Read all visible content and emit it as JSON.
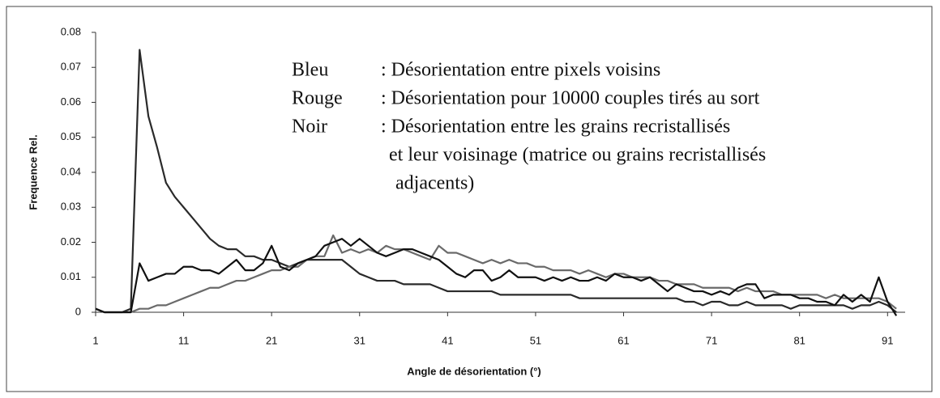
{
  "chart_data": {
    "type": "line",
    "x_label": "Angle de désorientation (°)",
    "y_label": "Frequence Rel.",
    "x": [
      1,
      2,
      3,
      4,
      5,
      6,
      7,
      8,
      9,
      10,
      11,
      12,
      13,
      14,
      15,
      16,
      17,
      18,
      19,
      20,
      21,
      22,
      23,
      24,
      25,
      26,
      27,
      28,
      29,
      30,
      31,
      32,
      33,
      34,
      35,
      36,
      37,
      38,
      39,
      40,
      41,
      42,
      43,
      44,
      45,
      46,
      47,
      48,
      49,
      50,
      51,
      52,
      53,
      54,
      55,
      56,
      57,
      58,
      59,
      60,
      61,
      62,
      63,
      64,
      65,
      66,
      67,
      68,
      69,
      70,
      71,
      72,
      73,
      74,
      75,
      76,
      77,
      78,
      79,
      80,
      81,
      82,
      83,
      84,
      85,
      86,
      87,
      88,
      89,
      90,
      91,
      92
    ],
    "series": [
      {
        "color": "#2a2a2a",
        "values": [
          0.001,
          0,
          0,
          0,
          0.001,
          0.075,
          0.056,
          0.047,
          0.037,
          0.033,
          0.03,
          0.027,
          0.024,
          0.021,
          0.019,
          0.018,
          0.018,
          0.016,
          0.016,
          0.015,
          0.015,
          0.014,
          0.013,
          0.014,
          0.015,
          0.015,
          0.015,
          0.015,
          0.015,
          0.013,
          0.011,
          0.01,
          0.009,
          0.009,
          0.009,
          0.008,
          0.008,
          0.008,
          0.008,
          0.007,
          0.006,
          0.006,
          0.006,
          0.006,
          0.006,
          0.006,
          0.005,
          0.005,
          0.005,
          0.005,
          0.005,
          0.005,
          0.005,
          0.005,
          0.005,
          0.004,
          0.004,
          0.004,
          0.004,
          0.004,
          0.004,
          0.004,
          0.004,
          0.004,
          0.004,
          0.004,
          0.004,
          0.003,
          0.003,
          0.002,
          0.003,
          0.003,
          0.002,
          0.002,
          0.003,
          0.002,
          0.002,
          0.002,
          0.002,
          0.001,
          0.002,
          0.002,
          0.002,
          0.002,
          0.002,
          0.002,
          0.001,
          0.002,
          0.002,
          0.003,
          0.002,
          0
        ]
      },
      {
        "color": "#6a6a6a",
        "values": [
          0.001,
          0,
          0,
          0,
          0,
          0.001,
          0.001,
          0.002,
          0.002,
          0.003,
          0.004,
          0.005,
          0.006,
          0.007,
          0.007,
          0.008,
          0.009,
          0.009,
          0.01,
          0.011,
          0.012,
          0.012,
          0.013,
          0.013,
          0.015,
          0.016,
          0.016,
          0.022,
          0.017,
          0.018,
          0.017,
          0.018,
          0.017,
          0.019,
          0.018,
          0.018,
          0.017,
          0.016,
          0.015,
          0.019,
          0.017,
          0.017,
          0.016,
          0.015,
          0.014,
          0.015,
          0.014,
          0.015,
          0.014,
          0.014,
          0.013,
          0.013,
          0.012,
          0.012,
          0.012,
          0.011,
          0.012,
          0.011,
          0.01,
          0.011,
          0.011,
          0.01,
          0.01,
          0.01,
          0.009,
          0.009,
          0.008,
          0.008,
          0.008,
          0.007,
          0.007,
          0.007,
          0.007,
          0.006,
          0.007,
          0.006,
          0.006,
          0.006,
          0.005,
          0.005,
          0.005,
          0.005,
          0.005,
          0.004,
          0.005,
          0.004,
          0.004,
          0.004,
          0.004,
          0.004,
          0.003,
          0.001
        ]
      },
      {
        "color": "#111111",
        "values": [
          0.001,
          0,
          0,
          0,
          0,
          0.014,
          0.009,
          0.01,
          0.011,
          0.011,
          0.013,
          0.013,
          0.012,
          0.012,
          0.011,
          0.013,
          0.015,
          0.012,
          0.012,
          0.014,
          0.019,
          0.013,
          0.012,
          0.014,
          0.015,
          0.016,
          0.019,
          0.02,
          0.021,
          0.019,
          0.021,
          0.019,
          0.017,
          0.016,
          0.017,
          0.018,
          0.018,
          0.017,
          0.016,
          0.015,
          0.013,
          0.011,
          0.01,
          0.012,
          0.012,
          0.009,
          0.01,
          0.012,
          0.01,
          0.01,
          0.01,
          0.009,
          0.01,
          0.009,
          0.01,
          0.009,
          0.009,
          0.01,
          0.009,
          0.011,
          0.01,
          0.01,
          0.009,
          0.01,
          0.008,
          0.006,
          0.008,
          0.007,
          0.006,
          0.006,
          0.005,
          0.006,
          0.005,
          0.007,
          0.008,
          0.008,
          0.004,
          0.005,
          0.005,
          0.005,
          0.004,
          0.004,
          0.003,
          0.003,
          0.002,
          0.005,
          0.003,
          0.005,
          0.003,
          0.01,
          0.003,
          -0.001
        ]
      }
    ],
    "xlim": [
      1,
      93
    ],
    "xticks": [
      1,
      11,
      21,
      31,
      41,
      51,
      61,
      71,
      81,
      91
    ],
    "ylim": [
      0,
      0.08
    ],
    "yticks": [
      0,
      0.01,
      0.02,
      0.03,
      0.04,
      0.05,
      0.06,
      0.07,
      0.08
    ],
    "grid": false,
    "annotation": [
      {
        "label": "Bleu",
        "lines": [
          ": Désorientation entre pixels voisins"
        ]
      },
      {
        "label": "Rouge",
        "lines": [
          ": Désorientation pour 10000 couples tirés au sort"
        ]
      },
      {
        "label": "Noir",
        "lines": [
          ": Désorientation entre les grains recristallisés",
          "et leur voisinage (matrice ou grains recristallisés",
          "adjacents)"
        ]
      }
    ]
  }
}
